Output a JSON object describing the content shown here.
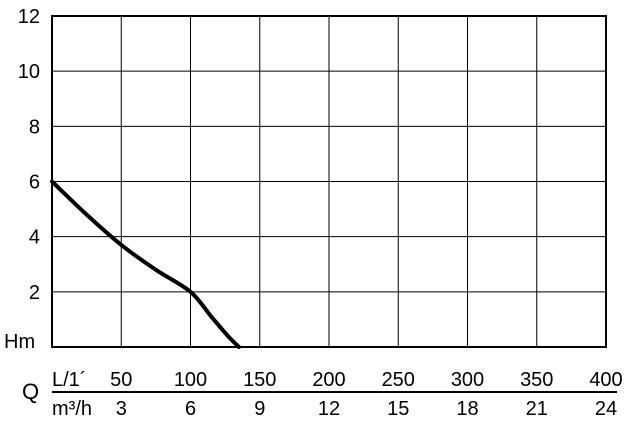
{
  "chart_data": {
    "type": "line",
    "y_axis": {
      "label": "Hm",
      "ticks": [
        "2",
        "4",
        "6",
        "8",
        "10",
        "12"
      ],
      "ylim": [
        0,
        12
      ]
    },
    "x_axis": {
      "symbol": "Q",
      "primary_unit": "L/1´",
      "primary_ticks": [
        "50",
        "100",
        "150",
        "200",
        "250",
        "300",
        "350",
        "400"
      ],
      "secondary_unit": "m³/h",
      "secondary_ticks": [
        "3",
        "6",
        "9",
        "12",
        "15",
        "18",
        "21",
        "24"
      ],
      "xlim": [
        0,
        400
      ]
    },
    "grid": true,
    "series": [
      {
        "x": [
          0,
          25,
          50,
          75,
          100,
          115,
          127,
          135
        ],
        "y": [
          6.0,
          4.8,
          3.7,
          2.8,
          2.0,
          1.1,
          0.4,
          0.0
        ]
      }
    ]
  }
}
